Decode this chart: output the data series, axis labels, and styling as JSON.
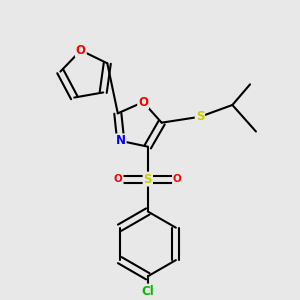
{
  "bg_color": "#e8e8e8",
  "bond_color": "#000000",
  "atom_colors": {
    "O": "#ff0000",
    "N": "#0000ff",
    "S": "#cccc00",
    "Cl": "#00bb00",
    "C": "#000000"
  },
  "bond_width": 1.5,
  "dbo": 0.012,
  "font_size": 8.5
}
